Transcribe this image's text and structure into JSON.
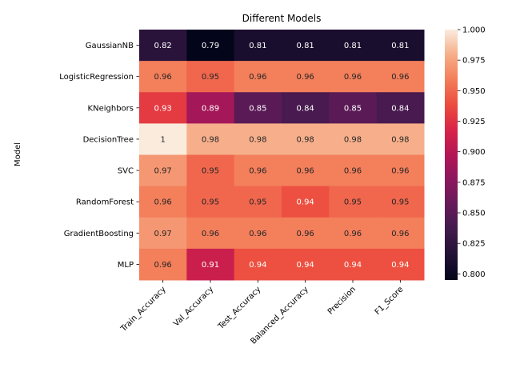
{
  "chart_data": {
    "type": "heatmap",
    "title": "Different Models",
    "ylabel": "Model",
    "xlabel": "",
    "columns": [
      "Train_Accuracy",
      "Val_Accuracy",
      "Test_Accuracy",
      "Balanced_Accuracy",
      "Precision",
      "F1_Score"
    ],
    "rows": [
      "GaussianNB",
      "LogisticRegression",
      "KNeighbors",
      "DecisionTree",
      "SVC",
      "RandomForest",
      "GradientBoosting",
      "MLP"
    ],
    "values": [
      [
        0.82,
        0.79,
        0.81,
        0.81,
        0.81,
        0.81
      ],
      [
        0.96,
        0.95,
        0.96,
        0.96,
        0.96,
        0.96
      ],
      [
        0.93,
        0.89,
        0.85,
        0.84,
        0.85,
        0.84
      ],
      [
        1.0,
        0.98,
        0.98,
        0.98,
        0.98,
        0.98
      ],
      [
        0.97,
        0.95,
        0.96,
        0.96,
        0.96,
        0.96
      ],
      [
        0.96,
        0.95,
        0.95,
        0.94,
        0.95,
        0.95
      ],
      [
        0.97,
        0.96,
        0.96,
        0.96,
        0.96,
        0.96
      ],
      [
        0.96,
        0.91,
        0.94,
        0.94,
        0.94,
        0.94
      ]
    ],
    "labels": [
      [
        "0.82",
        "0.79",
        "0.81",
        "0.81",
        "0.81",
        "0.81"
      ],
      [
        "0.96",
        "0.95",
        "0.96",
        "0.96",
        "0.96",
        "0.96"
      ],
      [
        "0.93",
        "0.89",
        "0.85",
        "0.84",
        "0.85",
        "0.84"
      ],
      [
        "1",
        "0.98",
        "0.98",
        "0.98",
        "0.98",
        "0.98"
      ],
      [
        "0.97",
        "0.95",
        "0.96",
        "0.96",
        "0.96",
        "0.96"
      ],
      [
        "0.96",
        "0.95",
        "0.95",
        "0.94",
        "0.95",
        "0.95"
      ],
      [
        "0.97",
        "0.96",
        "0.96",
        "0.96",
        "0.96",
        "0.96"
      ],
      [
        "0.96",
        "0.91",
        "0.94",
        "0.94",
        "0.94",
        "0.94"
      ]
    ],
    "colorscale": "rocket",
    "colorbar": {
      "range": [
        0.795,
        1.0
      ],
      "ticks": [
        "0.800",
        "0.825",
        "0.850",
        "0.875",
        "0.900",
        "0.925",
        "0.950",
        "0.975",
        "1.000"
      ]
    },
    "grid": false,
    "legend": "colorbar-right"
  }
}
